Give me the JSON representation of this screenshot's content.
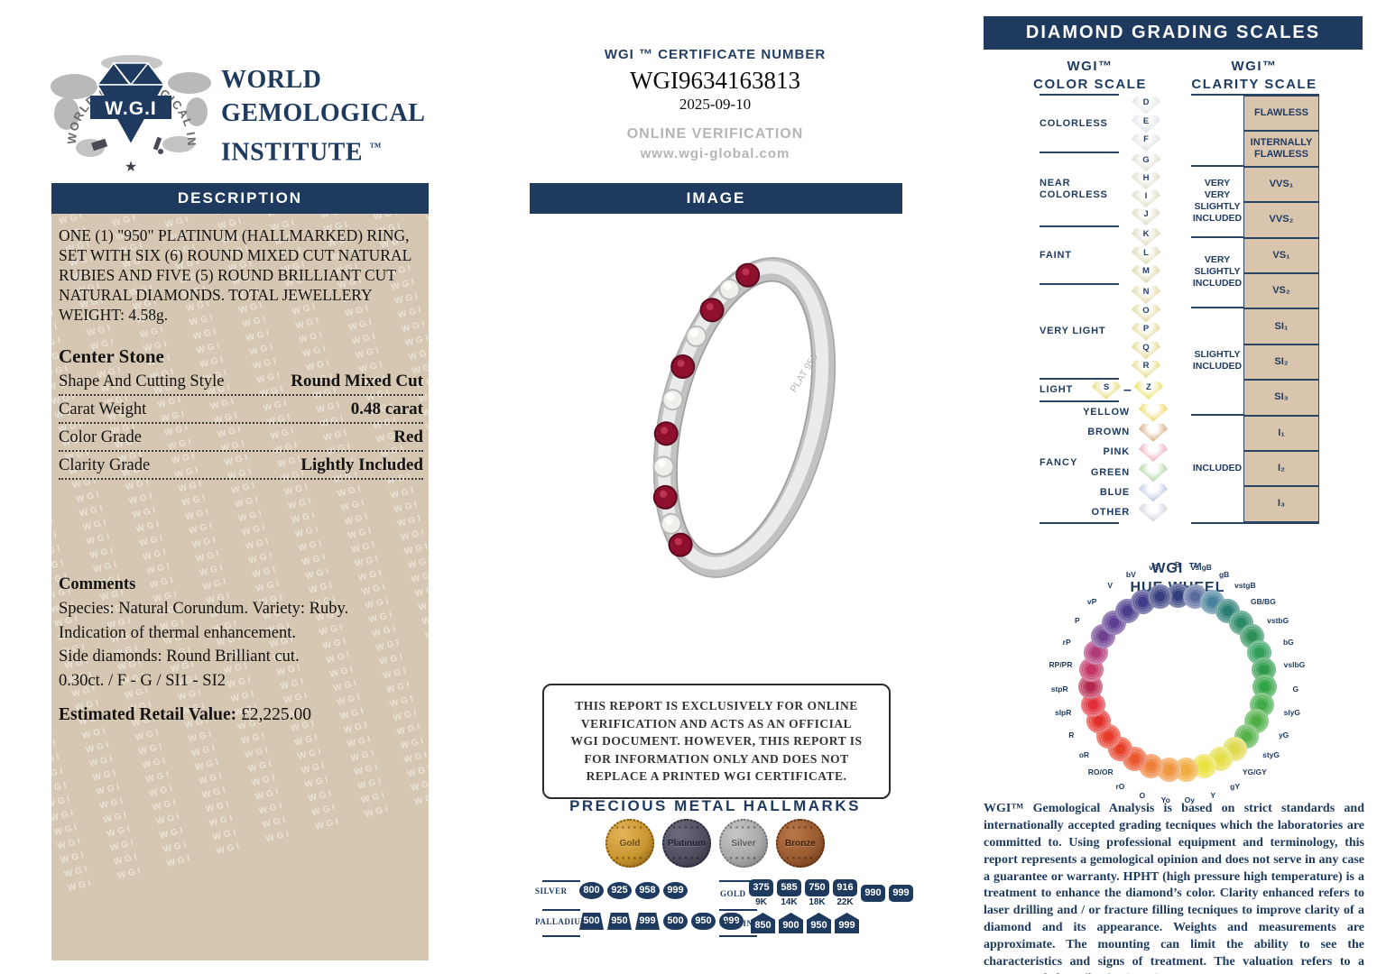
{
  "brand": {
    "ring_text": "WORLD GEMOLOGICAL INSTITUTE",
    "logo_monogram": "W.G.I",
    "star": "★",
    "name_line1": "WORLD",
    "name_line2": "GEMOLOGICAL",
    "name_line3": "INSTITUTE",
    "tm": "™"
  },
  "left": {
    "description_header": "DESCRIPTION",
    "description_text": "ONE (1) \"950\" PLATINUM (HALLMARKED) RING, SET WITH SIX (6) ROUND MIXED CUT NATURAL RUBIES AND FIVE (5) ROUND BRILLIANT CUT NATURAL DIAMONDS. TOTAL JEWELLERY WEIGHT: 4.58g.",
    "watermark_text": "WGI",
    "center_stone": {
      "title": "Center Stone",
      "rows": [
        {
          "label": "Shape And Cutting Style",
          "value": "Round Mixed Cut"
        },
        {
          "label": "Carat Weight",
          "value": "0.48 carat"
        },
        {
          "label": "Color Grade",
          "value": "Red"
        },
        {
          "label": "Clarity Grade",
          "value": "Lightly Included"
        }
      ]
    },
    "comments": {
      "title": "Comments",
      "lines": [
        "Species: Natural Corundum. Variety: Ruby.",
        "Indication of thermal enhancement.",
        "Side diamonds: Round Brilliant cut.",
        "0.30ct. / F - G / SI1 - SI2"
      ]
    },
    "retail_label": "Estimated Retail Value:",
    "retail_value": "£2,225.00"
  },
  "middle": {
    "cert_label": "WGI ™ CERTIFICATE NUMBER",
    "cert_number": "WGI9634163813",
    "cert_date": "2025-09-10",
    "online_verification": "ONLINE VERIFICATION",
    "website": "www.wgi-global.com",
    "image_header": "IMAGE",
    "ring": {
      "engraving": "PLAT 950",
      "stones": [
        "ruby",
        "diamond",
        "ruby",
        "diamond",
        "ruby",
        "diamond",
        "ruby",
        "diamond",
        "ruby",
        "diamond",
        "ruby"
      ],
      "ruby_color": "#8e0f2e",
      "diamond_color": "#efefec"
    },
    "disclaimer": "THIS REPORT IS EXCLUSIVELY FOR ONLINE VERIFICATION AND ACTS AS AN OFFICIAL WGI DOCUMENT. HOWEVER, THIS REPORT IS FOR INFORMATION ONLY AND DOES NOT REPLACE A PRINTED WGI CERTIFICATE.",
    "hallmarks": {
      "title": "PRECIOUS METAL HALLMARKS",
      "stars": "★★★★★",
      "coins": [
        {
          "label": "Gold",
          "face": "#c9962e",
          "light": "#e3b45a",
          "dark": "#7d5210",
          "text": "#6b4a0e"
        },
        {
          "label": "Platinum",
          "face": "#4e4e5e",
          "light": "#6c6c7e",
          "dark": "#2a2a38",
          "text": "#1f1f2e"
        },
        {
          "label": "Silver",
          "face": "#a8a8a8",
          "light": "#c8c8c8",
          "dark": "#707070",
          "text": "#5e5e5e"
        },
        {
          "label": "Bronze",
          "face": "#9a5a30",
          "light": "#b87848",
          "dark": "#5c3012",
          "text": "#3f2008"
        }
      ],
      "groups": [
        {
          "label": "SILVER",
          "marks": [
            {
              "text": "800",
              "shape": "oval"
            },
            {
              "text": "925",
              "shape": "oval"
            },
            {
              "text": "958",
              "shape": "oval"
            },
            {
              "text": "999",
              "shape": "oval"
            }
          ]
        },
        {
          "label": "PALLADIUM",
          "marks": [
            {
              "text": "500",
              "shape": "trapezoid"
            },
            {
              "text": "950",
              "shape": "trapezoid"
            },
            {
              "text": "999",
              "shape": "trapezoid"
            },
            {
              "text": "500",
              "shape": "trefoil"
            },
            {
              "text": "950",
              "shape": "trefoil"
            },
            {
              "text": "999",
              "shape": "trefoil"
            }
          ]
        },
        {
          "label": "GOLD",
          "marks": [
            {
              "text": "375",
              "shape": "square",
              "karat": "9K"
            },
            {
              "text": "585",
              "shape": "square",
              "karat": "14K"
            },
            {
              "text": "750",
              "shape": "square",
              "karat": "18K"
            },
            {
              "text": "916",
              "shape": "square",
              "karat": "22K"
            },
            {
              "text": "990",
              "shape": "square"
            },
            {
              "text": "999",
              "shape": "square"
            }
          ]
        },
        {
          "label": "PLATINUM",
          "marks": [
            {
              "text": "850",
              "shape": "house"
            },
            {
              "text": "900",
              "shape": "house"
            },
            {
              "text": "950",
              "shape": "house"
            },
            {
              "text": "999",
              "shape": "house"
            }
          ]
        }
      ]
    }
  },
  "right": {
    "header": "DIAMOND GRADING SCALES",
    "color_scale": {
      "title_line1": "WGI™",
      "title_line2": "COLOR SCALE",
      "groups": [
        {
          "label": "COLORLESS",
          "gems": [
            {
              "letter": "D",
              "tint": "#dadde2"
            },
            {
              "letter": "E",
              "tint": "#d9dce1"
            },
            {
              "letter": "F",
              "tint": "#d8dbde"
            }
          ]
        },
        {
          "label": "NEAR COLORLESS",
          "gems": [
            {
              "letter": "G",
              "tint": "#d9d8c6"
            },
            {
              "letter": "H",
              "tint": "#d8d6c0"
            },
            {
              "letter": "I",
              "tint": "#d7d4ba"
            },
            {
              "letter": "J",
              "tint": "#d6d2b4"
            }
          ]
        },
        {
          "label": "FAINT",
          "gems": [
            {
              "letter": "K",
              "tint": "#d7d2ab"
            },
            {
              "letter": "L",
              "tint": "#d7d1a4"
            },
            {
              "letter": "M",
              "tint": "#d6cf9c"
            }
          ]
        },
        {
          "label": "VERY LIGHT",
          "gems": [
            {
              "letter": "N",
              "tint": "#d9d094"
            },
            {
              "letter": "O",
              "tint": "#dbd18c"
            },
            {
              "letter": "P",
              "tint": "#dcd284"
            },
            {
              "letter": "Q",
              "tint": "#ded37c"
            },
            {
              "letter": "R",
              "tint": "#dfd474"
            }
          ]
        }
      ],
      "light_row": {
        "label": "LIGHT",
        "from": {
          "letter": "S",
          "tint": "#e3d562"
        },
        "dash": "–",
        "to": {
          "letter": "Z",
          "tint": "#e7d84b"
        }
      },
      "fancy": {
        "label": "FANCY",
        "rows": [
          {
            "name": "YELLOW",
            "tint": "#ecce49"
          },
          {
            "name": "BROWN",
            "tint": "#cfa070"
          },
          {
            "name": "PINK",
            "tint": "#eaa2b2"
          },
          {
            "name": "GREEN",
            "tint": "#a6cf96"
          },
          {
            "name": "BLUE",
            "tint": "#b4c3de"
          },
          {
            "name": "OTHER",
            "tint": "#c6c9d2"
          }
        ]
      }
    },
    "clarity_scale": {
      "title_line1": "WGI™",
      "title_line2": "CLARITY SCALE",
      "groups": [
        {
          "group": "",
          "grades": [
            "FLAWLESS"
          ]
        },
        {
          "group": "",
          "grades": [
            "INTERNALLY FLAWLESS"
          ]
        },
        {
          "group": "VERY VERY SLIGHTLY INCLUDED",
          "grades": [
            "VVS₁",
            "VVS₂"
          ]
        },
        {
          "group": "VERY SLIGHTLY INCLUDED",
          "grades": [
            "VS₁",
            "VS₂"
          ]
        },
        {
          "group": "SLIGHTLY INCLUDED",
          "grades": [
            "SI₁",
            "SI₂",
            "SI₃"
          ]
        },
        {
          "group": "INCLUDED",
          "grades": [
            "I₁",
            "I₂",
            "I₃"
          ]
        }
      ]
    },
    "hue_wheel": {
      "title_line1": "WGI ™",
      "title_line2": "HUE WHEEL",
      "items": [
        {
          "label": "B",
          "color": "#333f7d"
        },
        {
          "label": "vslgB",
          "color": "#5a6c9e"
        },
        {
          "label": "gB",
          "color": "#49829e"
        },
        {
          "label": "vstgB",
          "color": "#2a7d74"
        },
        {
          "label": "GB/BG",
          "color": "#2c8a68"
        },
        {
          "label": "vstbG",
          "color": "#2d9058"
        },
        {
          "label": "bG",
          "color": "#2f9e5b"
        },
        {
          "label": "vslbG",
          "color": "#2f9a4c"
        },
        {
          "label": "G",
          "color": "#31a347"
        },
        {
          "label": "slyG",
          "color": "#42aa49"
        },
        {
          "label": "yG",
          "color": "#4dae45"
        },
        {
          "label": "styG",
          "color": "#55b24a"
        },
        {
          "label": "YG/GY",
          "color": "#ded94d"
        },
        {
          "label": "gY",
          "color": "#e4df48"
        },
        {
          "label": "Y",
          "color": "#eae23e"
        },
        {
          "label": "Oy",
          "color": "#f0ab3c"
        },
        {
          "label": "Yo",
          "color": "#ef963e"
        },
        {
          "label": "O",
          "color": "#ee7f38"
        },
        {
          "label": "rO",
          "color": "#e9572e"
        },
        {
          "label": "RO/OR",
          "color": "#e64229"
        },
        {
          "label": "oR",
          "color": "#e63c2c"
        },
        {
          "label": "R",
          "color": "#e3302b"
        },
        {
          "label": "slpR",
          "color": "#e02e3a"
        },
        {
          "label": "stpR",
          "color": "#b52950"
        },
        {
          "label": "RP/PR",
          "color": "#c33566"
        },
        {
          "label": "rP",
          "color": "#b13a79"
        },
        {
          "label": "P",
          "color": "#6f4090"
        },
        {
          "label": "vP",
          "color": "#5e3d92"
        },
        {
          "label": "V",
          "color": "#4c3c8c"
        },
        {
          "label": "bV",
          "color": "#413c87"
        },
        {
          "label": "vB",
          "color": "#383f80"
        }
      ]
    },
    "footer_text": "WGI™ Gemological Analysis is based on strict standards and internationally accepted grading tecniques which the laboratories are committed to. Using professional equipment and terminology, this report represents a gemological opinion and does not serve in any case a guarantee or warranty. HPHT (high pressure high temperature) is a treatment to enhance the diamond’s color. Clarity enhanced refers to laser drilling and / or fracture filling tecniques to improve clarity of a diamond and its appearance. Weights and measurements are approximate. The mounting can limit the ability to see the characteristics and signs of treatment. The valuation refers to a recommended retail price (RRP)."
  }
}
